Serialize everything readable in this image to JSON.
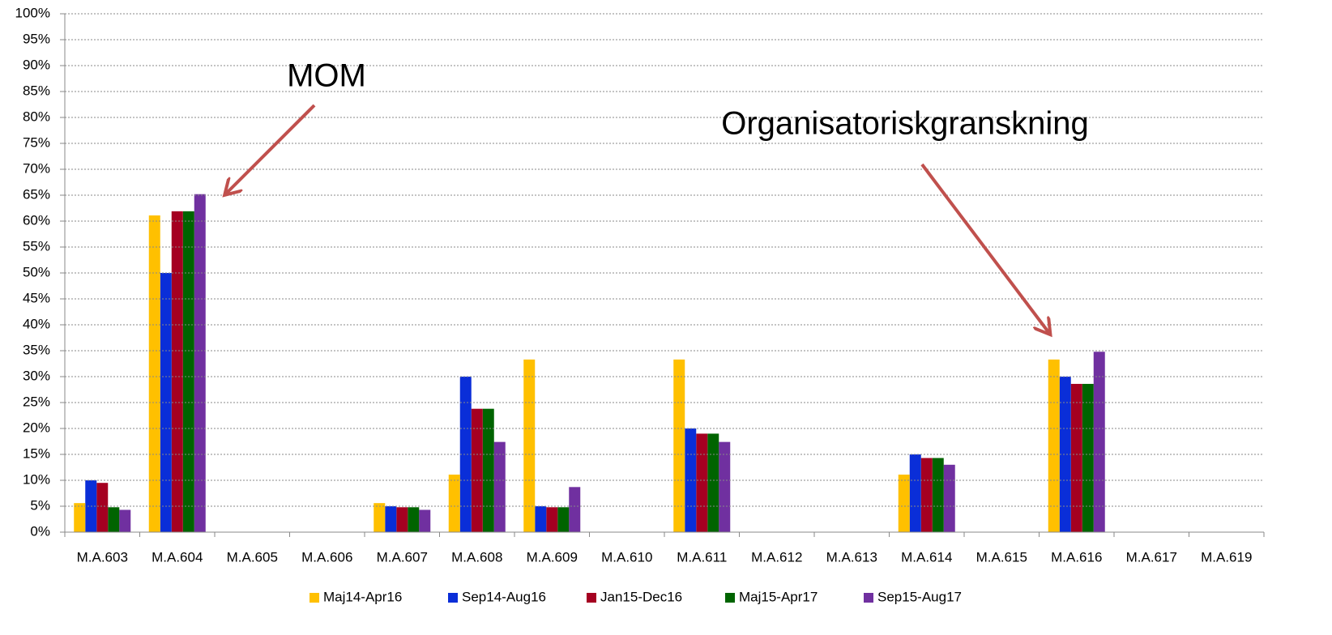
{
  "chart_data": {
    "type": "bar",
    "annotations": [
      "MOM",
      "Organisatoriskgranskning"
    ],
    "categories": [
      "M.A.603",
      "M.A.604",
      "M.A.605",
      "M.A.606",
      "M.A.607",
      "M.A.608",
      "M.A.609",
      "M.A.610",
      "M.A.611",
      "M.A.612",
      "M.A.613",
      "M.A.614",
      "M.A.615",
      "M.A.616",
      "M.A.617",
      "M.A.619"
    ],
    "series": [
      {
        "name": "Maj14-Apr16",
        "color": "#ffc000",
        "values": [
          5.6,
          61.1,
          0,
          0,
          5.6,
          11.1,
          33.3,
          0,
          33.3,
          0,
          0,
          11.1,
          0,
          33.3,
          0,
          0
        ]
      },
      {
        "name": "Sep14-Aug16",
        "color": "#0a2ed8",
        "values": [
          10,
          50,
          0,
          0,
          5,
          30,
          5,
          0,
          20,
          0,
          0,
          15,
          0,
          30,
          0,
          0
        ]
      },
      {
        "name": "Jan15-Dec16",
        "color": "#a50021",
        "values": [
          9.5,
          61.9,
          0,
          0,
          4.8,
          23.8,
          4.8,
          0,
          19,
          0,
          0,
          14.3,
          0,
          28.6,
          0,
          0
        ]
      },
      {
        "name": "Maj15-Apr17",
        "color": "#006400",
        "values": [
          4.8,
          61.9,
          0,
          0,
          4.8,
          23.8,
          4.8,
          0,
          19,
          0,
          0,
          14.3,
          0,
          28.6,
          0,
          0
        ]
      },
      {
        "name": "Sep15-Aug17",
        "color": "#7030a0",
        "values": [
          4.3,
          65.2,
          0,
          0,
          4.3,
          17.4,
          8.7,
          0,
          17.4,
          0,
          0,
          13,
          0,
          34.8,
          0,
          0
        ]
      }
    ],
    "ylim": [
      0,
      100
    ],
    "yticks": [
      {
        "value": 0,
        "label": "0%"
      },
      {
        "value": 5,
        "label": "5%"
      },
      {
        "value": 10,
        "label": "10%"
      },
      {
        "value": 15,
        "label": "15%"
      },
      {
        "value": 20,
        "label": "20%"
      },
      {
        "value": 25,
        "label": "25%"
      },
      {
        "value": 30,
        "label": "30%"
      },
      {
        "value": 35,
        "label": "35%"
      },
      {
        "value": 40,
        "label": "40%"
      },
      {
        "value": 45,
        "label": "45%"
      },
      {
        "value": 50,
        "label": "50%"
      },
      {
        "value": 55,
        "label": "55%"
      },
      {
        "value": 60,
        "label": "60%"
      },
      {
        "value": 65,
        "label": "65%"
      },
      {
        "value": 70,
        "label": "70%"
      },
      {
        "value": 75,
        "label": "75%"
      },
      {
        "value": 80,
        "label": "80%"
      },
      {
        "value": 85,
        "label": "85%"
      },
      {
        "value": 90,
        "label": "90%"
      },
      {
        "value": 95,
        "label": "95%"
      },
      {
        "value": 100,
        "label": "100%"
      }
    ],
    "grid": true,
    "legend": "bottom"
  }
}
